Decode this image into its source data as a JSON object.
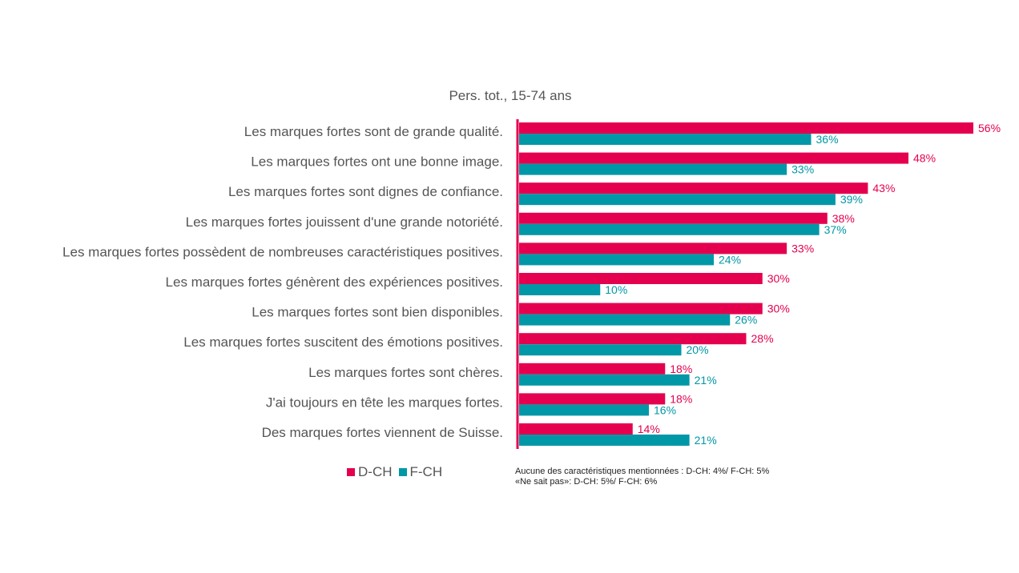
{
  "chart_data": {
    "type": "bar",
    "orientation": "horizontal",
    "title": "Pers. tot., 15-74 ans",
    "categories": [
      "Les marques fortes sont de grande qualité.",
      "Les marques fortes ont une bonne image.",
      "Les marques fortes sont dignes de confiance.",
      "Les marques fortes jouissent d'une grande notoriété.",
      "Les marques fortes possèdent de nombreuses caractéristiques positives.",
      "Les marques fortes génèrent des expériences positives.",
      "Les marques fortes sont bien disponibles.",
      "Les marques fortes suscitent des émotions positives.",
      "Les marques fortes sont chères.",
      "J'ai toujours en tête les marques fortes.",
      "Des marques fortes viennent de Suisse."
    ],
    "series": [
      {
        "name": "D-CH",
        "color": "#e4004f",
        "values": [
          56,
          48,
          43,
          38,
          33,
          30,
          30,
          28,
          18,
          18,
          14
        ],
        "labels": [
          "56%",
          "48%",
          "43%",
          "38%",
          "33%",
          "30%",
          "30%",
          "28%",
          "18%",
          "18%",
          "14%"
        ]
      },
      {
        "name": "F-CH",
        "color": "#0097a7",
        "values": [
          36,
          33,
          39,
          37,
          24,
          10,
          26,
          20,
          21,
          16,
          21
        ],
        "labels": [
          "36%",
          "33%",
          "39%",
          "37%",
          "24%",
          "10%",
          "26%",
          "20%",
          "21%",
          "16%",
          "21%"
        ]
      }
    ],
    "xlim": [
      0,
      56
    ],
    "axis_color": "#e4004f",
    "grid": false,
    "legend_position": "bottom-left"
  },
  "notes": {
    "line1": "Aucune des caractéristiques mentionnées : D-CH: 4%/ F-CH: 5%",
    "line2": "«Ne sait pas»: D-CH: 5%/ F-CH: 6%"
  }
}
